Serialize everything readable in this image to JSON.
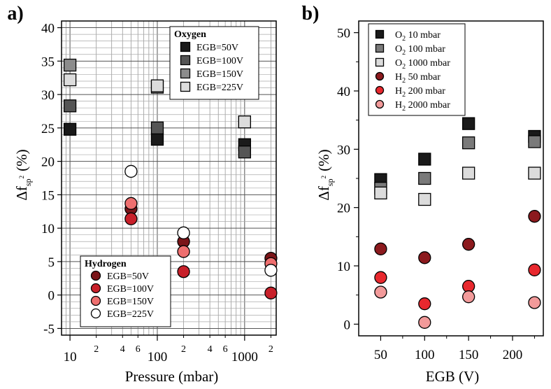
{
  "chart_data": [
    {
      "type": "scatter",
      "panel_label": "a)",
      "xlabel": "Pressure (mbar)",
      "ylabel_main": "Δf",
      "ylabel_sub": "sp",
      "ylabel_sup": "2",
      "ylabel_unit": "(%)",
      "xscale": "log",
      "xlim": [
        8,
        2300
      ],
      "ylim": [
        -6,
        41
      ],
      "grid": true,
      "x_ticks": [
        {
          "v": 10,
          "label": "10"
        },
        {
          "v": 100,
          "label": "100"
        },
        {
          "v": 1000,
          "label": "1000"
        }
      ],
      "x_minor_ticks": [
        {
          "v": 20,
          "label": "2"
        },
        {
          "v": 40,
          "label": "4"
        },
        {
          "v": 60,
          "label": "6"
        },
        {
          "v": 200,
          "label": "2"
        },
        {
          "v": 400,
          "label": "4"
        },
        {
          "v": 600,
          "label": "6"
        },
        {
          "v": 2000,
          "label": "2"
        }
      ],
      "y_ticks": [
        {
          "v": -5,
          "label": "-5"
        },
        {
          "v": 0,
          "label": "0"
        },
        {
          "v": 5,
          "label": "5"
        },
        {
          "v": 10,
          "label": "10"
        },
        {
          "v": 15,
          "label": "15"
        },
        {
          "v": 20,
          "label": "20"
        },
        {
          "v": 25,
          "label": "25"
        },
        {
          "v": 30,
          "label": "30"
        },
        {
          "v": 35,
          "label": "35"
        },
        {
          "v": 40,
          "label": "40"
        }
      ],
      "legends": [
        {
          "title": "Oxygen",
          "position": "top-right",
          "entries": [
            "EGB=50V",
            "EGB=100V",
            "EGB=150V",
            "EGB=225V"
          ]
        },
        {
          "title": "Hydrogen",
          "position": "bottom-left",
          "entries": [
            "EGB=50V",
            "EGB=100V",
            "EGB=150V",
            "EGB=225V"
          ]
        }
      ],
      "series": [
        {
          "name": "EGB=50V",
          "group": "Oxygen",
          "marker": "square",
          "color": "#1a1a1a",
          "x": [
            10,
            100,
            1000
          ],
          "y": [
            24.8,
            23.3,
            22.5
          ]
        },
        {
          "name": "EGB=100V",
          "group": "Oxygen",
          "marker": "square",
          "color": "#555555",
          "x": [
            10,
            100,
            1000
          ],
          "y": [
            28.3,
            25.0,
            21.4
          ]
        },
        {
          "name": "EGB=150V",
          "group": "Oxygen",
          "marker": "square",
          "color": "#8c8c8c",
          "x": [
            10,
            100,
            1000
          ],
          "y": [
            34.4,
            31.1,
            25.9
          ]
        },
        {
          "name": "EGB=225V",
          "group": "Oxygen",
          "marker": "square",
          "color": "#dcdcdc",
          "x": [
            10,
            100,
            1000
          ],
          "y": [
            32.2,
            31.3,
            25.9
          ]
        },
        {
          "name": "EGB=50V",
          "group": "Hydrogen",
          "marker": "circle",
          "color": "#7a1418",
          "x": [
            50,
            200,
            2000
          ],
          "y": [
            12.9,
            8.0,
            5.5
          ]
        },
        {
          "name": "EGB=100V",
          "group": "Hydrogen",
          "marker": "circle",
          "color": "#c8202a",
          "x": [
            50,
            200,
            2000
          ],
          "y": [
            11.4,
            3.5,
            0.3
          ]
        },
        {
          "name": "EGB=150V",
          "group": "Hydrogen",
          "marker": "circle",
          "color": "#ee6f6f",
          "x": [
            50,
            200,
            2000
          ],
          "y": [
            13.7,
            6.5,
            4.7
          ]
        },
        {
          "name": "EGB=225V",
          "group": "Hydrogen",
          "marker": "circle",
          "color": "#ffffff",
          "x": [
            50,
            200,
            2000
          ],
          "y": [
            18.5,
            9.3,
            3.7
          ]
        }
      ]
    },
    {
      "type": "scatter",
      "panel_label": "b)",
      "xlabel": "EGB (V)",
      "ylabel_main": "Δf",
      "ylabel_sub": "sp",
      "ylabel_sup": "2",
      "ylabel_unit": "(%)",
      "xlim": [
        25,
        235
      ],
      "ylim": [
        -2,
        52
      ],
      "grid": false,
      "x_ticks": [
        {
          "v": 50,
          "label": "50"
        },
        {
          "v": 100,
          "label": "100"
        },
        {
          "v": 150,
          "label": "150"
        },
        {
          "v": 200,
          "label": "200"
        }
      ],
      "y_ticks": [
        {
          "v": 0,
          "label": "0"
        },
        {
          "v": 10,
          "label": "10"
        },
        {
          "v": 20,
          "label": "20"
        },
        {
          "v": 30,
          "label": "30"
        },
        {
          "v": 40,
          "label": "40"
        },
        {
          "v": 50,
          "label": "50"
        }
      ],
      "legend": {
        "position": "top-left"
      },
      "series": [
        {
          "name": "O",
          "name_sub": "2",
          "name_rest": " 10 mbar",
          "marker": "square",
          "color": "#1a1a1a",
          "x": [
            50,
            100,
            150,
            225
          ],
          "y": [
            24.8,
            28.3,
            34.4,
            32.2
          ]
        },
        {
          "name": "O",
          "name_sub": "2",
          "name_rest": " 100 mbar",
          "marker": "square",
          "color": "#7a7a7a",
          "x": [
            50,
            100,
            150,
            225
          ],
          "y": [
            23.3,
            25.0,
            31.1,
            31.3
          ]
        },
        {
          "name": "O",
          "name_sub": "2",
          "name_rest": " 1000 mbar",
          "marker": "square",
          "color": "#dcdcdc",
          "x": [
            50,
            100,
            150,
            225
          ],
          "y": [
            22.5,
            21.4,
            25.9,
            25.9
          ]
        },
        {
          "name": "H",
          "name_sub": "2",
          "name_rest": " 50 mbar",
          "marker": "circle",
          "color": "#8c1a1e",
          "x": [
            50,
            100,
            150,
            225
          ],
          "y": [
            12.9,
            11.4,
            13.7,
            18.5
          ]
        },
        {
          "name": "H",
          "name_sub": "2",
          "name_rest": " 200 mbar",
          "marker": "circle",
          "color": "#e8282e",
          "x": [
            50,
            100,
            150,
            225
          ],
          "y": [
            8.0,
            3.5,
            6.5,
            9.3
          ]
        },
        {
          "name": "H",
          "name_sub": "2",
          "name_rest": " 2000 mbar",
          "marker": "circle",
          "color": "#f29a9a",
          "x": [
            50,
            100,
            150,
            225
          ],
          "y": [
            5.5,
            0.3,
            4.7,
            3.7
          ]
        }
      ]
    }
  ]
}
